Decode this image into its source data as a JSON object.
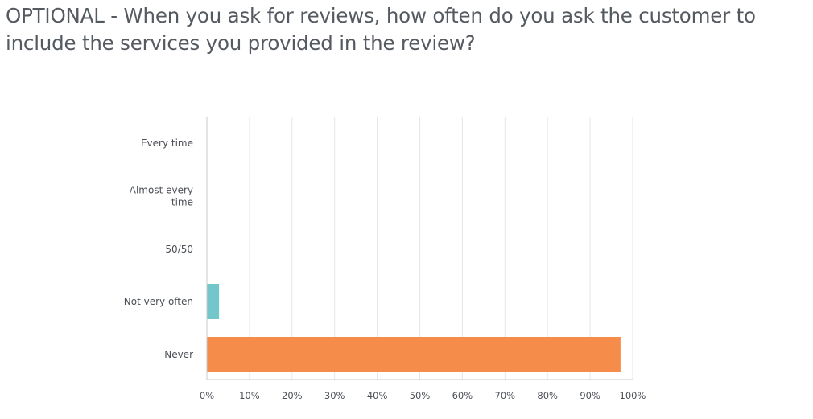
{
  "question": {
    "title": "OPTIONAL - When you ask for reviews, how often do you ask the customer to include the services you provided in the review?"
  },
  "chart_data": {
    "type": "bar",
    "orientation": "horizontal",
    "categories": [
      [
        "Every time"
      ],
      [
        "Almost every",
        "time"
      ],
      [
        "50/50"
      ],
      [
        "Not very often"
      ],
      [
        "Never"
      ]
    ],
    "values": [
      0,
      0,
      0,
      2.86,
      97.14
    ],
    "bar_colors": [
      "#00bf6f",
      "#6bc8cd",
      "#f05b4f",
      "#73c7cb",
      "#f68c4a"
    ],
    "xlim": [
      0,
      100
    ],
    "x_ticks": [
      0,
      10,
      20,
      30,
      40,
      50,
      60,
      70,
      80,
      90,
      100
    ],
    "x_tick_labels": [
      "0%",
      "10%",
      "20%",
      "30%",
      "40%",
      "50%",
      "60%",
      "70%",
      "80%",
      "90%",
      "100%"
    ],
    "grid": true,
    "grid_color": "#e6e6e6",
    "axis_color": "#c8c8c8"
  }
}
